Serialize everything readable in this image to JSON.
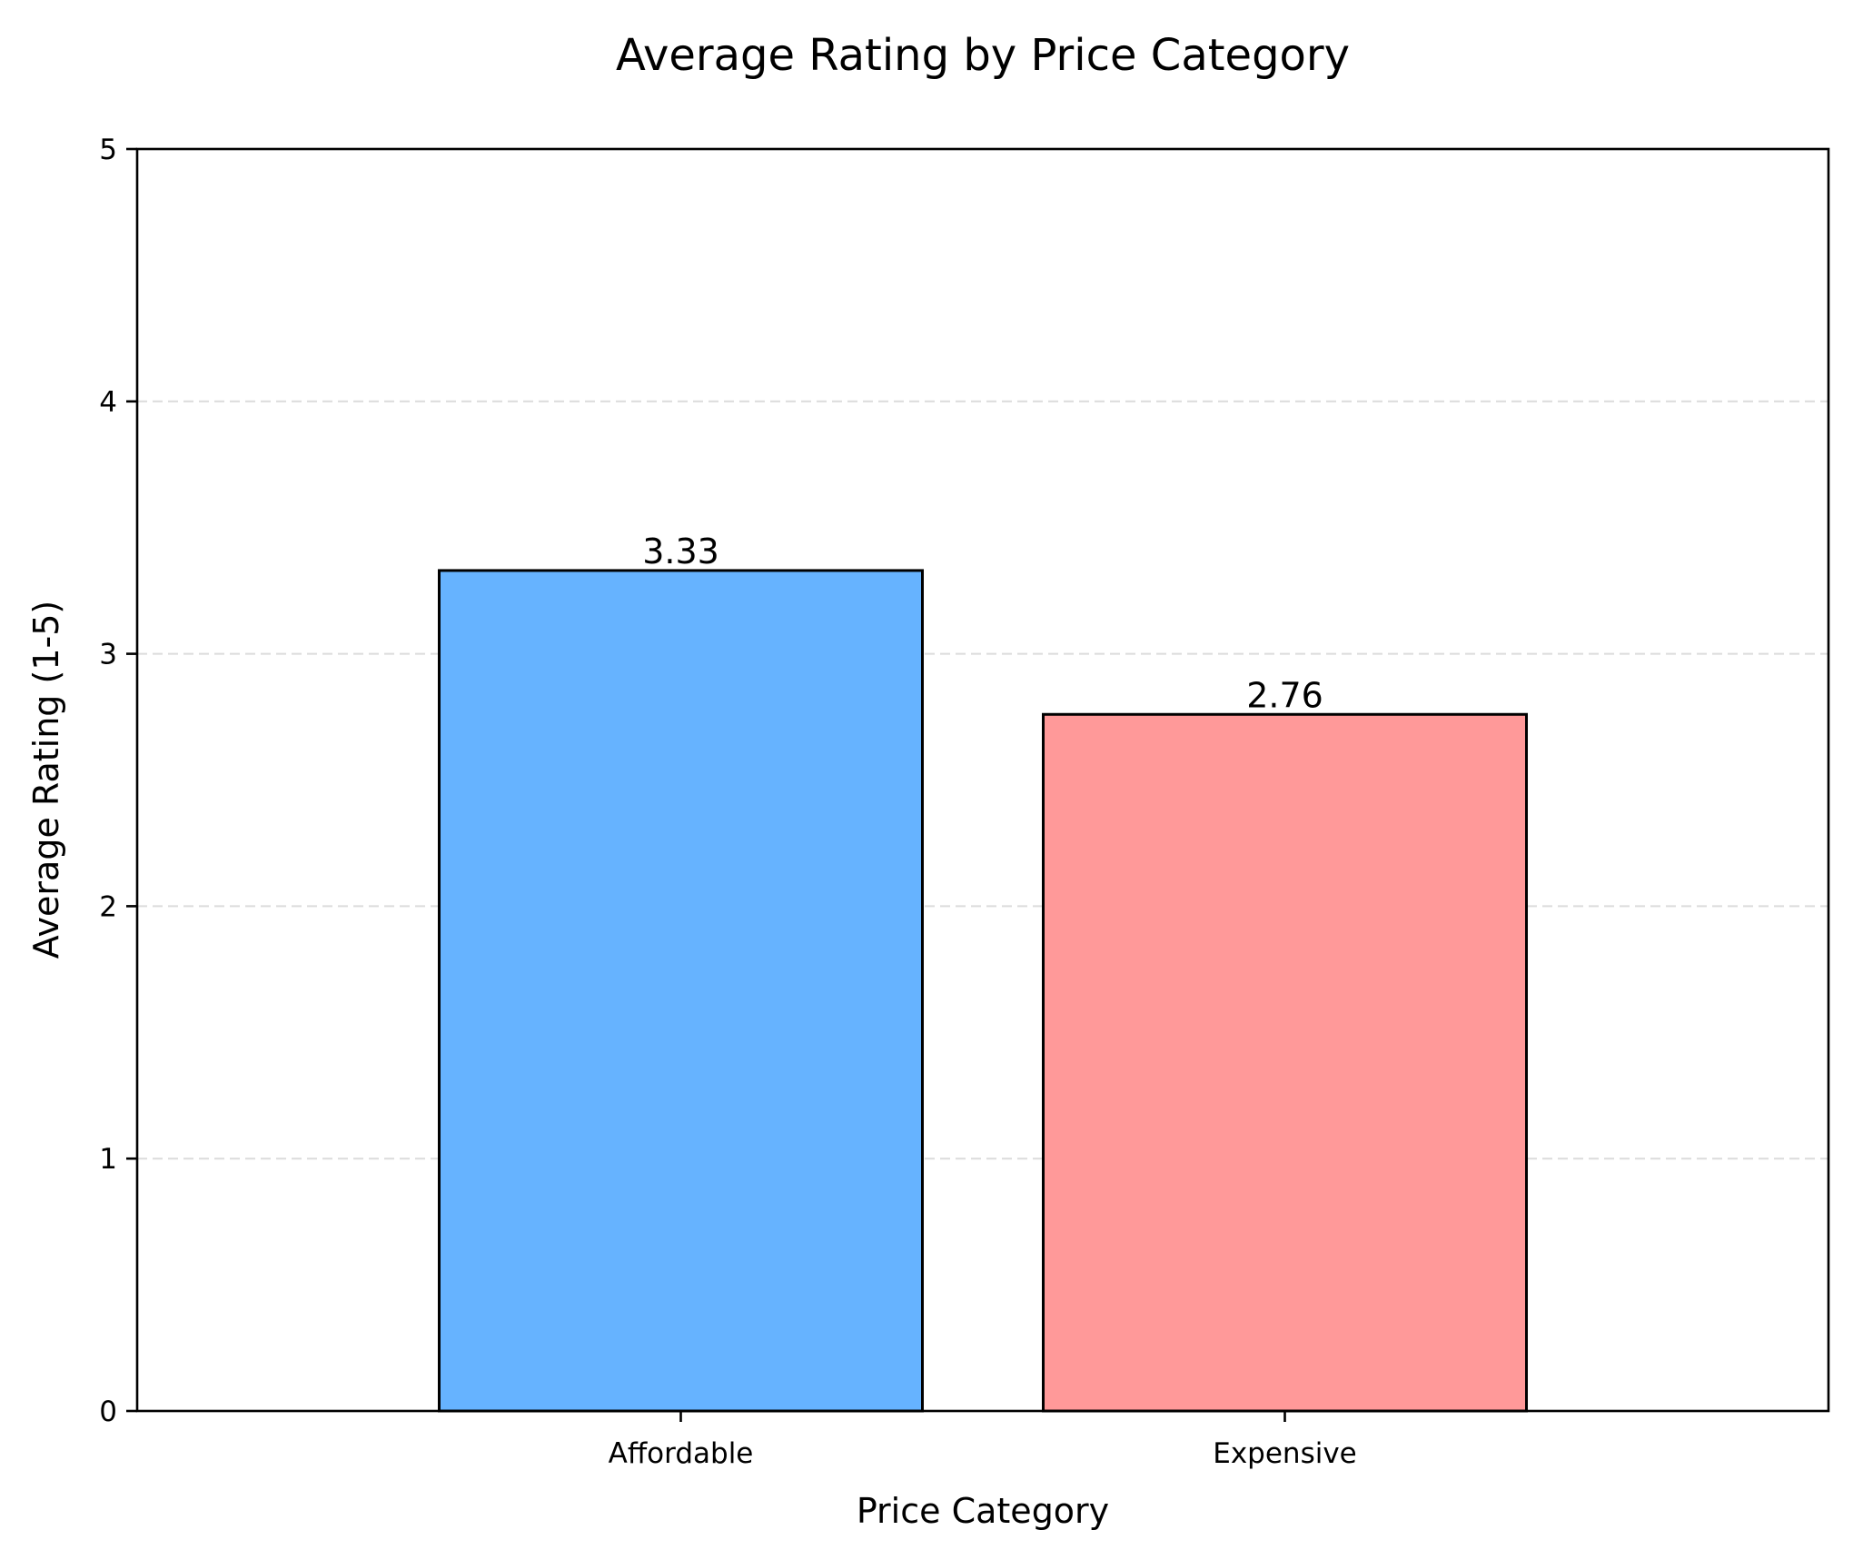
{
  "chart_data": {
    "type": "bar",
    "title": "Average Rating by Price Category",
    "xlabel": "Price Category",
    "ylabel": "Average Rating (1-5)",
    "categories": [
      "Affordable",
      "Expensive"
    ],
    "values": [
      3.33,
      2.76
    ],
    "value_labels": [
      "3.33",
      "2.76"
    ],
    "colors": [
      "#66b3ff",
      "#ff9999"
    ],
    "ylim": [
      0,
      5
    ],
    "yticks": [
      0,
      1,
      2,
      3,
      4,
      5
    ],
    "grid": {
      "axis": "y",
      "style": "dashed",
      "visible": true
    },
    "legend": "none"
  }
}
